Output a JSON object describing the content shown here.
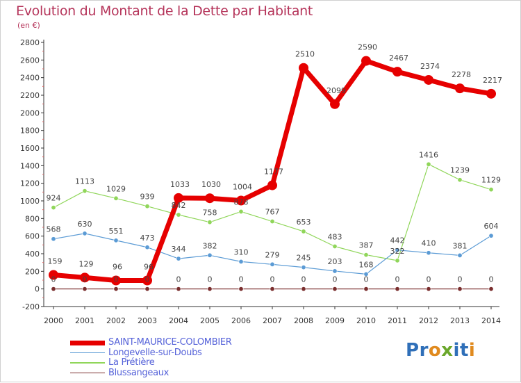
{
  "header": {
    "title": "Evolution du Montant de la Dette par Habitant",
    "subtitle": "(en €)"
  },
  "logo": {
    "text": "Proxiti",
    "letters": [
      {
        "ch": "P",
        "color": "#2f6fb8"
      },
      {
        "ch": "r",
        "color": "#2f6fb8"
      },
      {
        "ch": "o",
        "color": "#e08a1e"
      },
      {
        "ch": "x",
        "color": "#6aa72b"
      },
      {
        "ch": "i",
        "color": "#2f6fb8"
      },
      {
        "ch": "t",
        "color": "#2f6fb8"
      },
      {
        "ch": "i",
        "color": "#e08a1e"
      }
    ]
  },
  "chart_data": {
    "type": "line",
    "title": "Evolution du Montant de la Dette par Habitant",
    "subtitle": "(en €)",
    "x": [
      "2000",
      "2001",
      "2002",
      "2003",
      "2004",
      "2005",
      "2006",
      "2007",
      "2008",
      "2009",
      "2010",
      "2011",
      "2012",
      "2013",
      "2014"
    ],
    "ylim": [
      -200,
      2800
    ],
    "yticks": [
      -200,
      0,
      200,
      400,
      600,
      800,
      1000,
      1200,
      1400,
      1600,
      1800,
      2000,
      2200,
      2400,
      2600,
      2800
    ],
    "grid": false,
    "legend_position": "bottom-left",
    "series": [
      {
        "name": "SAINT-MAURICE-COLOMBIER",
        "color": "#e60000",
        "values": [
          159,
          129,
          96,
          96,
          1033,
          1030,
          1004,
          1177,
          2510,
          2099,
          2590,
          2467,
          2374,
          2278,
          2217
        ],
        "labels": [
          "159",
          "129",
          "96",
          "96",
          "1033",
          "1030",
          "1004",
          "1177",
          "2510",
          "2099",
          "2590",
          "2467",
          "2374",
          "2278",
          "2217"
        ]
      },
      {
        "name": "Longevelle-sur-Doubs",
        "color": "#5b9bd5",
        "values": [
          568,
          630,
          551,
          473,
          344,
          382,
          310,
          279,
          245,
          203,
          168,
          442,
          410,
          381,
          604
        ],
        "labels": [
          "568",
          "630",
          "551",
          "473",
          "344",
          "382",
          "310",
          "279",
          "245",
          "203",
          "168",
          "442",
          "410",
          "381",
          "604"
        ]
      },
      {
        "name": "La Prétière",
        "color": "#90d65a",
        "values": [
          924,
          1113,
          1029,
          939,
          842,
          758,
          878,
          767,
          653,
          483,
          387,
          322,
          1416,
          1239,
          1129
        ],
        "labels": [
          "924",
          "1113",
          "1029",
          "939",
          "842",
          "758",
          "878",
          "767",
          "653",
          "483",
          "387",
          "322",
          "1416",
          "1239",
          "1129"
        ]
      },
      {
        "name": "Blussangeaux",
        "color": "#7a2e2e",
        "values": [
          0,
          0,
          0,
          0,
          0,
          0,
          0,
          0,
          0,
          0,
          0,
          0,
          0,
          0,
          0
        ],
        "labels": [
          "0",
          "0",
          "0",
          "0",
          "0",
          "0",
          "0",
          "0",
          "0",
          "0",
          "0",
          "0",
          "0",
          "0",
          "0"
        ]
      }
    ]
  }
}
